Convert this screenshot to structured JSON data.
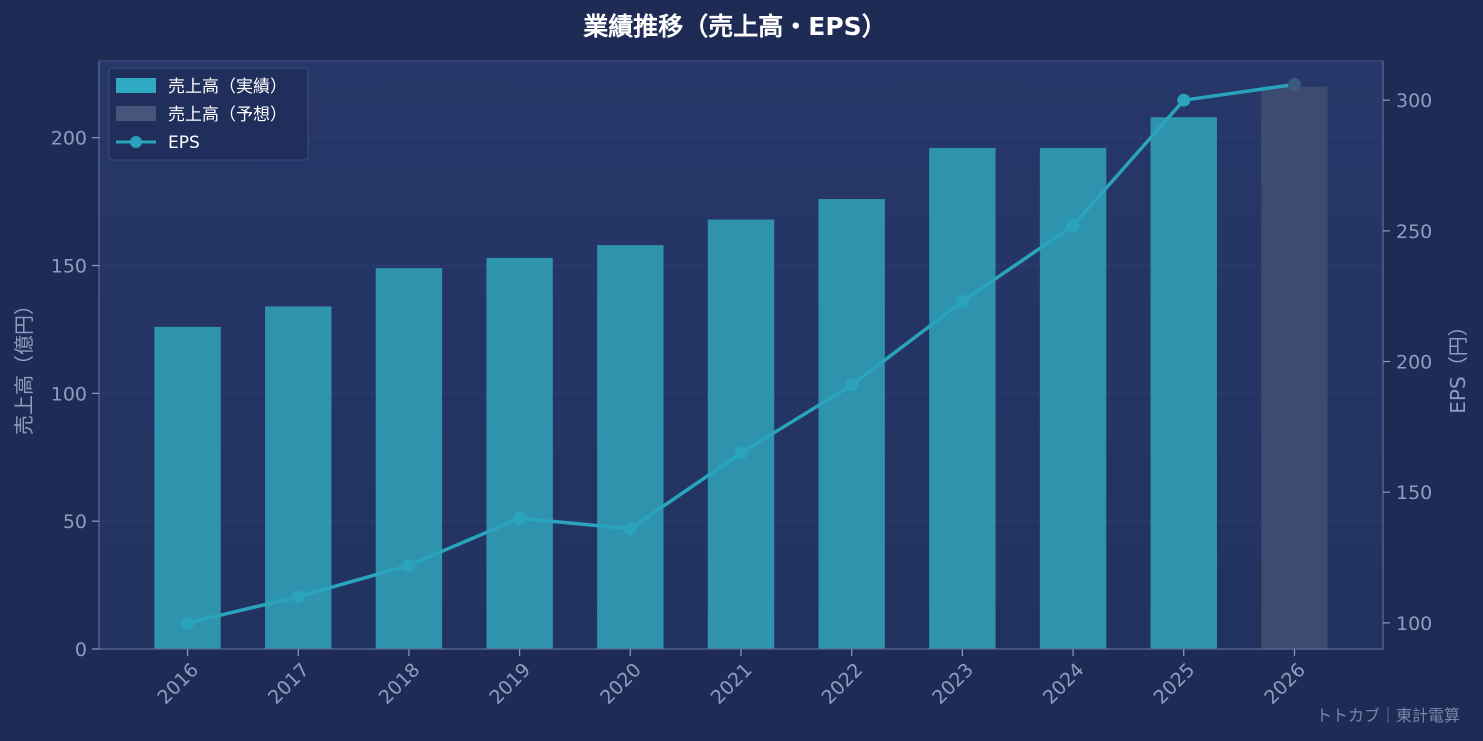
{
  "chart_data": {
    "type": "bar",
    "title": "業績推移（売上高・EPS）",
    "categories": [
      "2016",
      "2017",
      "2018",
      "2019",
      "2020",
      "2021",
      "2022",
      "2023",
      "2024",
      "2025",
      "2026"
    ],
    "series": [
      {
        "name": "売上高（実績）",
        "type": "bar",
        "axis": "left",
        "values": [
          126,
          134,
          149,
          153,
          158,
          168,
          176,
          196,
          196,
          208,
          null
        ]
      },
      {
        "name": "売上高（予想）",
        "type": "bar",
        "axis": "left",
        "values": [
          null,
          null,
          null,
          null,
          null,
          null,
          null,
          null,
          null,
          null,
          220
        ]
      },
      {
        "name": "EPS",
        "type": "line",
        "axis": "right",
        "values": [
          100,
          110,
          122,
          140,
          136,
          165,
          191,
          223,
          252,
          300,
          306
        ]
      }
    ],
    "ylabel": "売上高（億円）",
    "y2label": "EPS（円）",
    "ylim": [
      0,
      230
    ],
    "y2lim": [
      90,
      315
    ],
    "yticks": [
      0,
      50,
      100,
      150,
      200
    ],
    "y2ticks": [
      100,
      150,
      200,
      250,
      300
    ],
    "grid": true,
    "legend_position": "top-left"
  },
  "source": "トトカブ｜東計電算",
  "colors": {
    "actual": "#2e93ad",
    "forecast": "#3d4b6e",
    "eps": "#2aa3bd",
    "legend_actual": "#2fa8c2",
    "legend_forecast": "#46557a"
  }
}
